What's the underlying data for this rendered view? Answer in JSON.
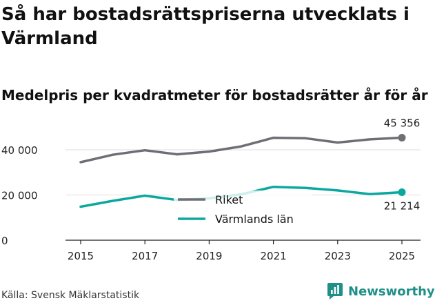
{
  "header": {
    "title": "Så har bostadsrättspriserna utvecklats i Värmland",
    "subtitle": "Medelpris per kvadratmeter för bostadsrätter år för år"
  },
  "footer": {
    "source": "Källa: Svensk Mäklarstatistik",
    "brand": "Newsworthy"
  },
  "colors": {
    "riket": "#6e6e75",
    "varmland": "#0ca89f",
    "grid": "#dedede",
    "axis": "#222222",
    "brand": "#1f8f87"
  },
  "chart_data": {
    "type": "line",
    "title": "Så har bostadsrättspriserna utvecklats i Värmland",
    "subtitle": "Medelpris per kvadratmeter för bostadsrätter år för år",
    "xlabel": "",
    "ylabel": "",
    "x": [
      2015,
      2016,
      2017,
      2018,
      2019,
      2020,
      2021,
      2022,
      2023,
      2024,
      2025
    ],
    "xticks": [
      "2015",
      "2017",
      "2019",
      "2021",
      "2023",
      "2025"
    ],
    "yticks": [
      0,
      20000,
      40000
    ],
    "ytick_labels": [
      "0",
      "20 000",
      "40 000"
    ],
    "ylim": [
      0,
      50000
    ],
    "grid": true,
    "legend_position": "center",
    "series": [
      {
        "name": "Riket",
        "color": "#6e6e75",
        "values": [
          34500,
          37800,
          39800,
          38000,
          39200,
          41500,
          45300,
          45100,
          43200,
          44600,
          45356
        ],
        "end_label": "45 356"
      },
      {
        "name": "Värmlands län",
        "color": "#0ca89f",
        "values": [
          14800,
          17400,
          19700,
          17800,
          18500,
          20300,
          23600,
          23100,
          22000,
          20400,
          21214
        ],
        "end_label": "21 214"
      }
    ]
  }
}
